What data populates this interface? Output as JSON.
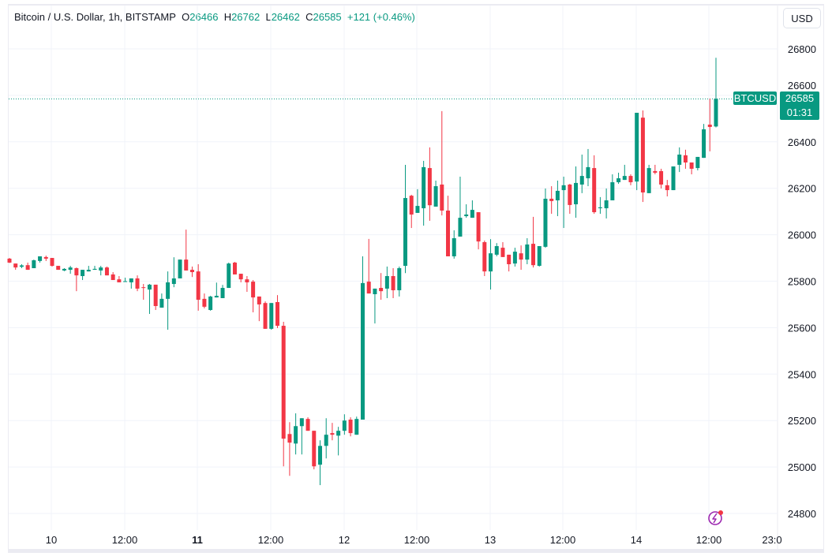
{
  "header": {
    "symbol_desc": "Bitcoin / U.S. Dollar, 1h, BITSTAMP",
    "o_label": "O",
    "o_value": "26466",
    "h_label": "H",
    "h_value": "26762",
    "l_label": "L",
    "l_value": "26462",
    "c_label": "C",
    "c_value": "26585",
    "change": "+121 (+0.46%)"
  },
  "currency_button": "USD",
  "last_price": {
    "symbol_label": "BTCUSD",
    "price": "26585",
    "countdown": "01:31"
  },
  "colors": {
    "up": "#089981",
    "down": "#f23645",
    "grid": "#f0f3fa",
    "alert_icon": "#9c27b0"
  },
  "icons": {
    "alert": "lightning-alert-icon"
  },
  "chart_data": {
    "type": "candlestick",
    "title": "Bitcoin / U.S. Dollar, 1h, BITSTAMP",
    "ylim": [
      24720,
      26880
    ],
    "y_ticks": [
      24800,
      25000,
      25200,
      25400,
      25600,
      25800,
      26000,
      26200,
      26400,
      26600,
      26800
    ],
    "x_ticks": [
      "10",
      "12:00",
      "11",
      "12:00",
      "12",
      "12:00",
      "13",
      "12:00",
      "14",
      "12:00",
      "23:0"
    ],
    "x_ticks_bold": [
      "11"
    ],
    "grid": true,
    "last_price": 26585,
    "ohlc": [
      [
        25897,
        25880,
        25900,
        25878
      ],
      [
        25876,
        25859,
        25876,
        25849
      ],
      [
        25862,
        25868,
        25873,
        25856
      ],
      [
        25869,
        25849,
        25880,
        25849
      ],
      [
        25856,
        25890,
        25893,
        25856
      ],
      [
        25887,
        25907,
        25907,
        25880
      ],
      [
        25904,
        25897,
        25910,
        25887
      ],
      [
        25900,
        25866,
        25900,
        25863
      ],
      [
        25866,
        25849,
        25866,
        25849
      ],
      [
        25846,
        25853,
        25856,
        25843
      ],
      [
        25849,
        25859,
        25866,
        25832
      ],
      [
        25856,
        25825,
        25859,
        25757
      ],
      [
        25822,
        25849,
        25849,
        25805
      ],
      [
        25842,
        25849,
        25866,
        25842
      ],
      [
        25849,
        25853,
        25866,
        25849
      ],
      [
        25846,
        25859,
        25866,
        25825
      ],
      [
        25859,
        25825,
        25863,
        25825
      ],
      [
        25829,
        25805,
        25839,
        25805
      ],
      [
        25808,
        25795,
        25822,
        25795
      ],
      [
        25798,
        25800,
        25815,
        25798
      ],
      [
        25795,
        25812,
        25812,
        25768
      ],
      [
        25812,
        25768,
        25825,
        25757
      ],
      [
        25774,
        25771,
        25788,
        25720
      ],
      [
        25764,
        25785,
        25788,
        25659
      ],
      [
        25785,
        25693,
        25785,
        25676
      ],
      [
        25686,
        25724,
        25747,
        25686
      ],
      [
        25724,
        25795,
        25842,
        25591
      ],
      [
        25788,
        25812,
        25903,
        25774
      ],
      [
        25812,
        25893,
        25893,
        25812
      ],
      [
        25893,
        25846,
        26022,
        25846
      ],
      [
        25849,
        25839,
        25863,
        25818
      ],
      [
        25842,
        25720,
        25873,
        25673
      ],
      [
        25724,
        25690,
        25747,
        25683
      ],
      [
        25676,
        25734,
        25737,
        25673
      ],
      [
        25730,
        25737,
        25794,
        25730
      ],
      [
        25727,
        25771,
        25784,
        25727
      ],
      [
        25771,
        25876,
        25880,
        25771
      ],
      [
        25880,
        25829,
        25883,
        25829
      ],
      [
        25832,
        25808,
        25832,
        25795
      ],
      [
        25808,
        25795,
        25822,
        25754
      ],
      [
        25798,
        25730,
        25805,
        25666
      ],
      [
        25734,
        25700,
        25734,
        25628
      ],
      [
        25706,
        25595,
        25713,
        25595
      ],
      [
        25595,
        25706,
        25706,
        25591
      ],
      [
        25710,
        25608,
        25740,
        25598
      ],
      [
        25608,
        25122,
        25625,
        25003
      ],
      [
        25142,
        25105,
        25193,
        24962
      ],
      [
        25101,
        25176,
        25231,
        25054
      ],
      [
        25176,
        25210,
        25210,
        25054
      ],
      [
        25207,
        25156,
        25214,
        25156
      ],
      [
        25156,
        25003,
        25156,
        24990
      ],
      [
        25010,
        25091,
        25115,
        24922
      ],
      [
        25091,
        25139,
        25210,
        25037
      ],
      [
        25146,
        25139,
        25190,
        25115
      ],
      [
        25135,
        25156,
        25173,
        25050
      ],
      [
        25156,
        25200,
        25227,
        25139
      ],
      [
        25204,
        25146,
        25214,
        25132
      ],
      [
        25139,
        25207,
        25217,
        25139
      ],
      [
        25204,
        25792,
        25907,
        25204
      ],
      [
        25798,
        25747,
        25982,
        25747
      ],
      [
        25744,
        25768,
        25768,
        25618
      ],
      [
        25771,
        25757,
        25835,
        25720
      ],
      [
        25768,
        25822,
        25863,
        25727
      ],
      [
        25822,
        25761,
        25856,
        25727
      ],
      [
        25761,
        25856,
        25863,
        25734
      ],
      [
        25866,
        26158,
        26301,
        25835
      ],
      [
        26168,
        26087,
        26172,
        26029
      ],
      [
        26094,
        26124,
        26196,
        26094
      ],
      [
        26114,
        26291,
        26318,
        26039
      ],
      [
        26287,
        26127,
        26376,
        26060
      ],
      [
        26121,
        26209,
        26233,
        26121
      ],
      [
        26216,
        26104,
        26532,
        26083
      ],
      [
        26104,
        25907,
        26168,
        25907
      ],
      [
        25907,
        25985,
        26019,
        25897
      ],
      [
        25992,
        26073,
        26250,
        25992
      ],
      [
        26080,
        26087,
        26131,
        26073
      ],
      [
        26073,
        26107,
        26148,
        26073
      ],
      [
        26097,
        25971,
        26097,
        25937
      ],
      [
        25968,
        25842,
        25975,
        25822
      ],
      [
        25842,
        25920,
        25981,
        25764
      ],
      [
        25914,
        25951,
        25964,
        25907
      ],
      [
        25944,
        25904,
        25968,
        25904
      ],
      [
        25914,
        25873,
        25914,
        25842
      ],
      [
        25876,
        25927,
        25944,
        25863
      ],
      [
        25920,
        25893,
        25954,
        25849
      ],
      [
        25893,
        25958,
        25985,
        25873
      ],
      [
        25961,
        25869,
        26077,
        25859
      ],
      [
        25866,
        25951,
        25951,
        25863
      ],
      [
        25948,
        26155,
        26199,
        25944
      ],
      [
        26155,
        26145,
        26209,
        26090
      ],
      [
        26148,
        26189,
        26233,
        26080
      ],
      [
        26192,
        26213,
        26250,
        26029
      ],
      [
        26216,
        26128,
        26219,
        26090
      ],
      [
        26131,
        26223,
        26294,
        26073
      ],
      [
        26216,
        26253,
        26345,
        26179
      ],
      [
        26243,
        26291,
        26369,
        26209
      ],
      [
        26287,
        26097,
        26342,
        26090
      ],
      [
        26114,
        26118,
        26162,
        26090
      ],
      [
        26114,
        26148,
        26199,
        26070
      ],
      [
        26148,
        26226,
        26260,
        26148
      ],
      [
        26226,
        26243,
        26267,
        26219
      ],
      [
        26236,
        26253,
        26301,
        26236
      ],
      [
        26253,
        26226,
        26260,
        26213
      ],
      [
        26229,
        26525,
        26525,
        26192
      ],
      [
        26504,
        26182,
        26535,
        26141
      ],
      [
        26179,
        26287,
        26301,
        26179
      ],
      [
        26274,
        26267,
        26301,
        26260
      ],
      [
        26274,
        26216,
        26284,
        26199
      ],
      [
        26213,
        26192,
        26236,
        26165
      ],
      [
        26192,
        26294,
        26294,
        26192
      ],
      [
        26301,
        26345,
        26376,
        26270
      ],
      [
        26342,
        26311,
        26366,
        26284
      ],
      [
        26311,
        26284,
        26311,
        26260
      ],
      [
        26287,
        26335,
        26335,
        26277
      ],
      [
        26331,
        26454,
        26477,
        26331
      ],
      [
        26474,
        26464,
        26586,
        26359
      ],
      [
        26466,
        26585,
        26762,
        26462
      ]
    ]
  }
}
